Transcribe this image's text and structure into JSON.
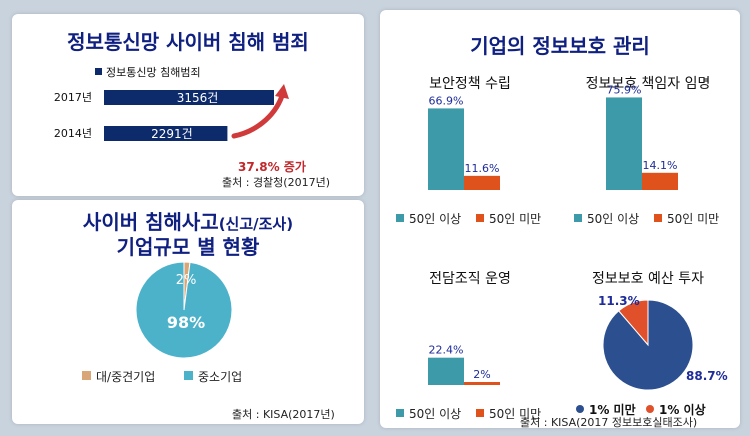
{
  "colors": {
    "navy": "#0d2a6b",
    "teal": "#3d9aa8",
    "orange": "#e0521c",
    "pie_dark": "#2c4f8f",
    "pie_red": "#e0502a",
    "pie_light": "#4bb2c9",
    "pie_small": "#d9a678",
    "title": "#0f2080",
    "red_label": "#c0282b"
  },
  "left_top": {
    "title": "정보통신망 사이버 침해 범죄",
    "source": "출처 : 경찰청(2017년)",
    "growth_label": "37.8% 증가"
  },
  "left_bottom": {
    "title_line1_main": "사이버 침해사고",
    "title_line1_paren": "(신고/조사)",
    "title_line2": "기업규모 별 현황",
    "source": "출처 : KISA(2017년)"
  },
  "right": {
    "title": "기업의 정보보호 관리",
    "source": "출처 : KISA(2017 정보보호실태조사)"
  },
  "chart_data": [
    {
      "type": "bar",
      "orientation": "horizontal",
      "legend": "정보통신망 침해범죄",
      "categories": [
        "2017년",
        "2014년"
      ],
      "values": [
        3156,
        2291
      ],
      "value_labels": [
        "3156건",
        "2291건"
      ]
    },
    {
      "type": "pie",
      "labels": [
        "대/중견기업",
        "중소기업"
      ],
      "values": [
        2,
        98
      ],
      "value_labels": [
        "2%",
        "98%"
      ]
    },
    {
      "type": "bar",
      "title": "보안정책 수립",
      "categories": [
        "50인 이상",
        "50인 미만"
      ],
      "values": [
        66.9,
        11.6
      ],
      "value_labels": [
        "66.9%",
        "11.6%"
      ]
    },
    {
      "type": "bar",
      "title": "정보보호 책임자 임명",
      "categories": [
        "50인 이상",
        "50인 미만"
      ],
      "values": [
        75.9,
        14.1
      ],
      "value_labels": [
        "75.9%",
        "14.1%"
      ]
    },
    {
      "type": "bar",
      "title": "전담조직 운영",
      "categories": [
        "50인 이상",
        "50인 미만"
      ],
      "values": [
        22.4,
        2
      ],
      "value_labels": [
        "22.4%",
        "2%"
      ]
    },
    {
      "type": "pie",
      "title": "정보보호 예산 투자",
      "labels": [
        "1% 미만",
        "1% 이상"
      ],
      "values": [
        88.7,
        11.3
      ],
      "value_labels": [
        "88.7%",
        "11.3%"
      ]
    }
  ]
}
